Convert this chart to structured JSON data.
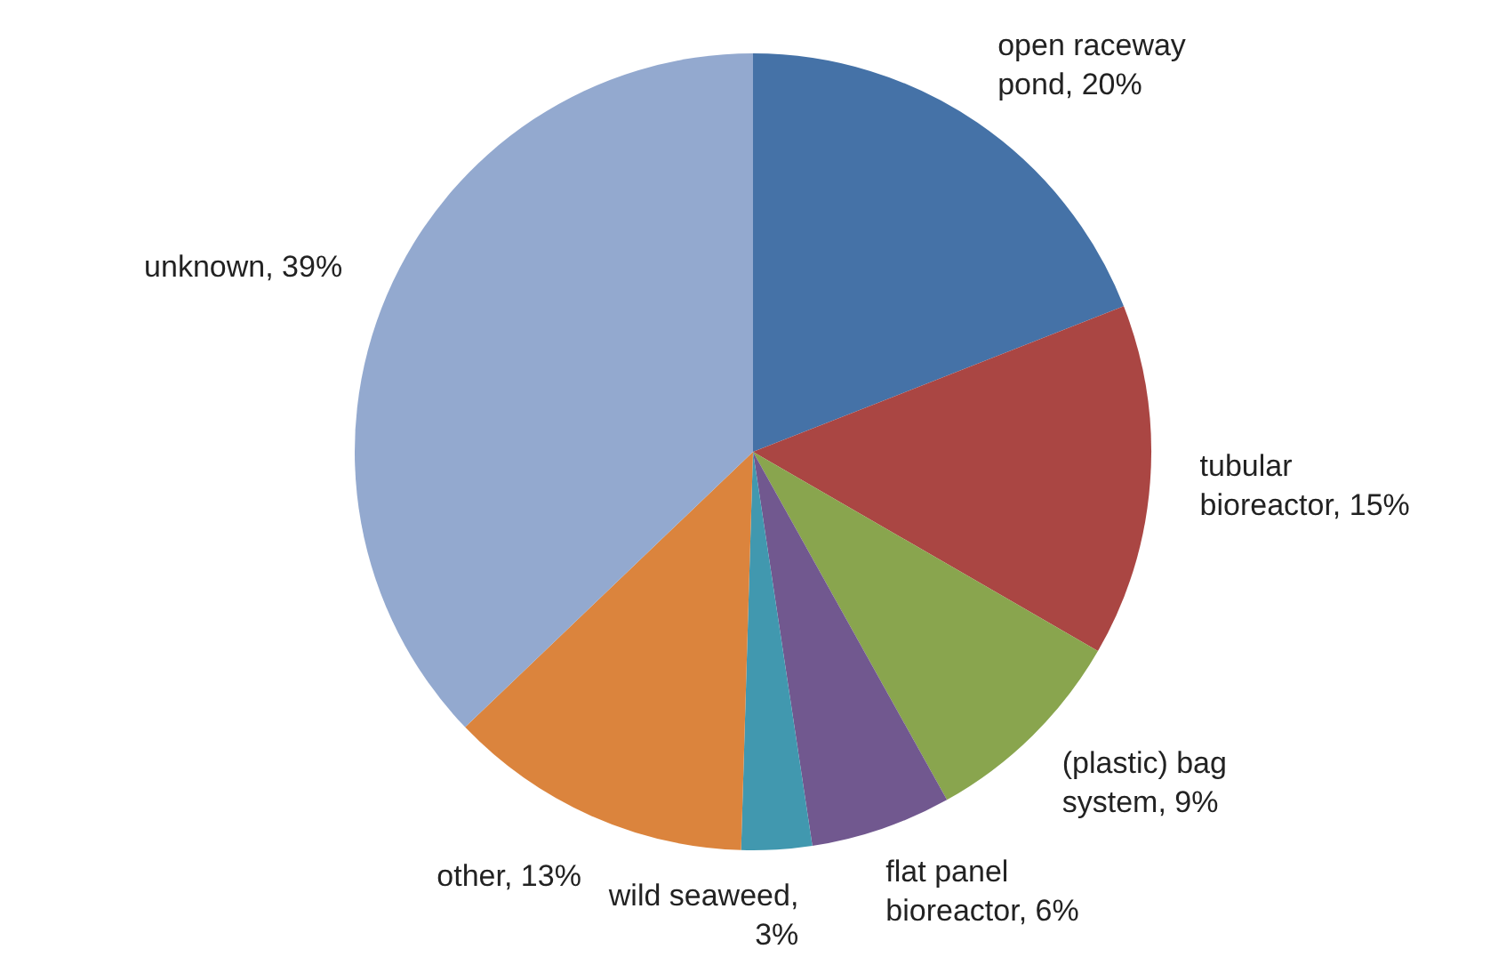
{
  "chart_data": {
    "type": "pie",
    "categories": [
      "open raceway pond, 20%",
      "tubular bioreactor, 15%",
      "(plastic) bag system, 9%",
      "flat panel bioreactor, 6%",
      "wild seaweed, 3%",
      "other, 13%",
      "unknown, 39%"
    ],
    "values": [
      20,
      15,
      9,
      6,
      3,
      13,
      39
    ],
    "colors": [
      "#4572a7",
      "#aa4643",
      "#89a54e",
      "#71588f",
      "#4198af",
      "#db843d",
      "#93a9cf"
    ],
    "legend": false
  }
}
